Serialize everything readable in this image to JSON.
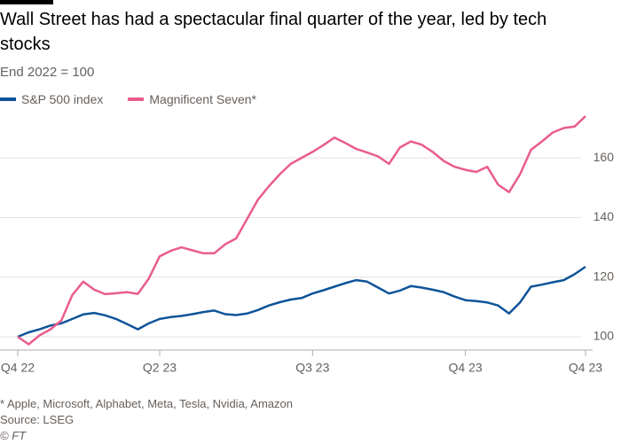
{
  "chart_data": {
    "type": "line",
    "title": "Wall Street has had a spectacular final quarter of the year, led by tech stocks",
    "subtitle": "End 2022 = 100",
    "note": "* Apple, Microsoft, Alphabet, Meta, Tesla, Nvidia, Amazon",
    "source": "Source: LSEG",
    "credit": "© FT",
    "categories": [
      "Q4 22",
      null,
      null,
      null,
      null,
      null,
      null,
      null,
      null,
      null,
      null,
      null,
      null,
      "Q2 23",
      null,
      null,
      null,
      null,
      null,
      null,
      null,
      null,
      null,
      null,
      null,
      null,
      null,
      "Q3 23",
      null,
      null,
      null,
      null,
      null,
      null,
      null,
      null,
      null,
      null,
      null,
      null,
      null,
      "Q4 23",
      null,
      null,
      null,
      null,
      null,
      null,
      null,
      null,
      null,
      null,
      "Q4 23"
    ],
    "series": [
      {
        "name": "S&P 500 index",
        "color": "#0f5499",
        "values": [
          100,
          101.5,
          102.5,
          103.8,
          104.5,
          106,
          107.5,
          108,
          107.2,
          106,
          104.3,
          102.5,
          104.5,
          106,
          106.6,
          107,
          107.6,
          108.3,
          108.8,
          107.6,
          107.3,
          107.8,
          109,
          110.5,
          111.6,
          112.5,
          113,
          114.5,
          115.6,
          116.8,
          118,
          119,
          118.5,
          116.5,
          114.5,
          115.5,
          117,
          116.5,
          115.8,
          115,
          113.5,
          112.3,
          112,
          111.5,
          110.5,
          107.8,
          111.5,
          116.8,
          117.5,
          118.3,
          119,
          121,
          123.5
        ]
      },
      {
        "name": "Magnificent Seven*",
        "color": "#e95d8c",
        "values": [
          100,
          97.5,
          100.5,
          102.5,
          105.5,
          114,
          118.5,
          115.8,
          114.3,
          114.6,
          115,
          114.4,
          119.5,
          127,
          128.8,
          130,
          129,
          128,
          128,
          131,
          133,
          139.5,
          146,
          150.5,
          154.5,
          158,
          160,
          162,
          164.3,
          166.8,
          165,
          163,
          161.8,
          160.5,
          158,
          163.5,
          165.5,
          164.4,
          162,
          159,
          157,
          156,
          155.3,
          157,
          151,
          148.5,
          154.5,
          162.7,
          165.5,
          168.5,
          170,
          170.5,
          174
        ]
      }
    ],
    "ylim": [
      96,
      176
    ],
    "yticks": [
      100,
      120,
      140,
      160
    ],
    "grid": true
  }
}
